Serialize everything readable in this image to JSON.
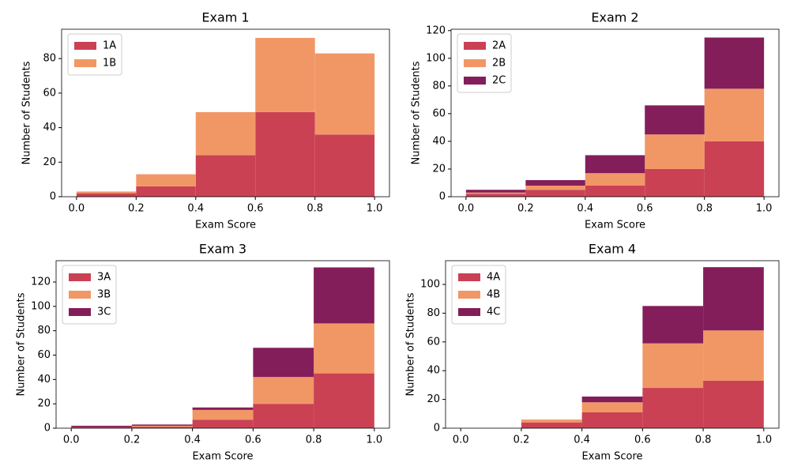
{
  "chart_data": [
    {
      "type": "histogram",
      "title": "Exam 1",
      "xlabel": "Exam Score",
      "ylabel": "Number of Students",
      "stacked": true,
      "legend": "upper left",
      "bins": [
        0,
        0.2,
        0.4,
        0.6,
        0.8,
        1
      ],
      "series": [
        {
          "name": "1A",
          "color": "#cb4154",
          "values": [
            2,
            6,
            24,
            49,
            36
          ]
        },
        {
          "name": "1B",
          "color": "#f19766",
          "values": [
            1,
            7,
            25,
            43,
            47
          ]
        }
      ],
      "xlim": [
        -0.05,
        1.05
      ],
      "xticks": [
        {
          "value": 0,
          "label": "0.0"
        },
        0.2,
        0.4,
        0.6,
        0.8,
        {
          "value": 1,
          "label": "1.0"
        }
      ],
      "ylim": [
        0,
        97
      ],
      "yticks": [
        0,
        20,
        40,
        60,
        80
      ]
    },
    {
      "type": "histogram",
      "title": "Exam 2",
      "xlabel": "Exam Score",
      "ylabel": "Number of Students",
      "stacked": true,
      "legend": "upper left",
      "bins": [
        0,
        0.2,
        0.4,
        0.6,
        0.8,
        1
      ],
      "series": [
        {
          "name": "2A",
          "color": "#cb4154",
          "values": [
            2,
            5,
            8,
            20,
            40
          ]
        },
        {
          "name": "2B",
          "color": "#f19766",
          "values": [
            1,
            3,
            9,
            25,
            38
          ]
        },
        {
          "name": "2C",
          "color": "#841e5a",
          "values": [
            2,
            4,
            13,
            21,
            37
          ]
        }
      ],
      "xlim": [
        -0.05,
        1.05
      ],
      "xticks": [
        {
          "value": 0,
          "label": "0.0"
        },
        0.2,
        0.4,
        0.6,
        0.8,
        {
          "value": 1,
          "label": "1.0"
        }
      ],
      "ylim": [
        0,
        121
      ],
      "yticks": [
        0,
        20,
        40,
        60,
        80,
        100,
        120
      ]
    },
    {
      "type": "histogram",
      "title": "Exam 3",
      "xlabel": "Exam Score",
      "ylabel": "Number of Students",
      "stacked": true,
      "legend": "upper left",
      "bins": [
        0,
        0.2,
        0.4,
        0.6,
        0.8,
        1
      ],
      "series": [
        {
          "name": "3A",
          "color": "#cb4154",
          "values": [
            1,
            1,
            7,
            20,
            45
          ]
        },
        {
          "name": "3B",
          "color": "#f19766",
          "values": [
            0,
            1,
            8,
            22,
            41
          ]
        },
        {
          "name": "3C",
          "color": "#841e5a",
          "values": [
            1,
            1,
            2,
            24,
            46
          ]
        }
      ],
      "xlim": [
        -0.05,
        1.05
      ],
      "xticks": [
        {
          "value": 0,
          "label": "0.0"
        },
        0.2,
        0.4,
        0.6,
        0.8,
        {
          "value": 1,
          "label": "1.0"
        }
      ],
      "ylim": [
        0,
        137.5
      ],
      "yticks": [
        0,
        20,
        40,
        60,
        80,
        100,
        120
      ]
    },
    {
      "type": "histogram",
      "title": "Exam 4",
      "xlabel": "Exam Score",
      "ylabel": "Number of Students",
      "stacked": true,
      "legend": "upper left",
      "bins": [
        0,
        0.2,
        0.4,
        0.6,
        0.8,
        1
      ],
      "series": [
        {
          "name": "4A",
          "color": "#cb4154",
          "values": [
            0,
            4,
            11,
            28,
            33
          ]
        },
        {
          "name": "4B",
          "color": "#f19766",
          "values": [
            0,
            2,
            7,
            31,
            35
          ]
        },
        {
          "name": "4C",
          "color": "#841e5a",
          "values": [
            0,
            0,
            4,
            26,
            44
          ]
        }
      ],
      "xlim": [
        -0.05,
        1.05
      ],
      "xticks": [
        {
          "value": 0,
          "label": "0.0"
        },
        0.2,
        0.4,
        0.6,
        0.8,
        {
          "value": 1,
          "label": "1.0"
        }
      ],
      "ylim": [
        0,
        116.5
      ],
      "yticks": [
        0,
        20,
        40,
        60,
        80,
        100
      ]
    }
  ]
}
